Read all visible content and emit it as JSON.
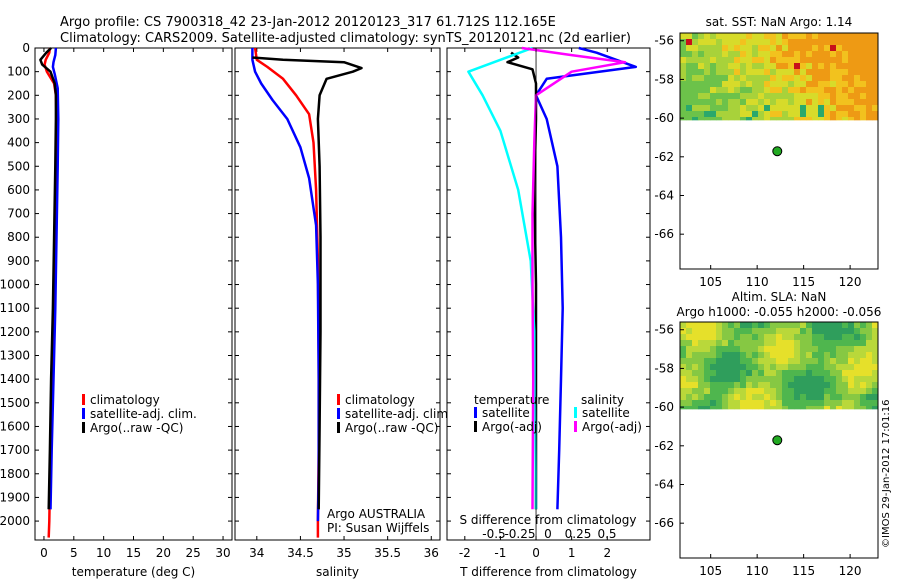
{
  "header": {
    "line1": "Argo profile: CS 7900318_42 23-Jan-2012 20120123_317 61.712S 112.165E",
    "line2": "Climatology: CARS2009. Satellite-adjusted climatology: synTS_20120121.nc (2d earlier)"
  },
  "watermark": "©IMOS 29-Jan-2012 17:01:16",
  "colors": {
    "red": "#ff0000",
    "blue": "#0000ff",
    "black": "#000000",
    "cyan": "#00ffff",
    "magenta": "#ff00ff",
    "dot": "#22aa22"
  },
  "chart_data": [
    {
      "id": "temperature",
      "type": "line",
      "xlabel": "temperature (deg C)",
      "ylabel": "",
      "xlim": [
        -1.5,
        31.5
      ],
      "ylim": [
        2080,
        0
      ],
      "xticks": [
        0,
        5,
        10,
        15,
        20,
        25,
        30
      ],
      "yticks": [
        0,
        100,
        200,
        300,
        400,
        500,
        600,
        700,
        800,
        900,
        1000,
        1100,
        1200,
        1300,
        1400,
        1500,
        1600,
        1700,
        1800,
        1900,
        2000
      ],
      "legend": [
        "climatology",
        "satellite-adj. clim.",
        "Argo(..raw -QC)"
      ],
      "series": [
        {
          "name": "climatology",
          "color": "red",
          "points": [
            [
              1.0,
              0
            ],
            [
              0.9,
              20
            ],
            [
              0.3,
              50
            ],
            [
              0.1,
              70
            ],
            [
              0.5,
              100
            ],
            [
              1.7,
              150
            ],
            [
              2.0,
              200
            ],
            [
              2.1,
              300
            ],
            [
              2.0,
              500
            ],
            [
              1.8,
              800
            ],
            [
              1.6,
              1100
            ],
            [
              1.4,
              1400
            ],
            [
              1.1,
              1700
            ],
            [
              0.9,
              2000
            ],
            [
              0.8,
              2070
            ]
          ]
        },
        {
          "name": "satellite-adj. clim.",
          "color": "blue",
          "points": [
            [
              2.0,
              0
            ],
            [
              1.9,
              30
            ],
            [
              1.6,
              60
            ],
            [
              1.5,
              80
            ],
            [
              1.8,
              110
            ],
            [
              2.3,
              170
            ],
            [
              2.4,
              300
            ],
            [
              2.3,
              500
            ],
            [
              2.1,
              800
            ],
            [
              1.9,
              1100
            ],
            [
              1.6,
              1400
            ],
            [
              1.3,
              1700
            ],
            [
              1.1,
              1950
            ]
          ]
        },
        {
          "name": "Argo(..raw -QC)",
          "color": "black",
          "points": [
            [
              1.2,
              0
            ],
            [
              0.4,
              20
            ],
            [
              -0.6,
              50
            ],
            [
              -0.3,
              70
            ],
            [
              1.1,
              100
            ],
            [
              1.8,
              150
            ],
            [
              2.0,
              200
            ],
            [
              2.0,
              300
            ],
            [
              1.9,
              500
            ],
            [
              1.7,
              800
            ],
            [
              1.5,
              1100
            ],
            [
              1.2,
              1400
            ],
            [
              1.0,
              1700
            ],
            [
              0.8,
              1950
            ]
          ]
        }
      ]
    },
    {
      "id": "salinity",
      "type": "line",
      "xlabel": "salinity",
      "ylabel": "",
      "xlim": [
        33.75,
        36.1
      ],
      "ylim": [
        2080,
        0
      ],
      "xticks": [
        34,
        34.5,
        35,
        35.5,
        36
      ],
      "legend": [
        "climatology",
        "satellite-adj. clim.",
        "Argo(..raw -QC)"
      ],
      "series": [
        {
          "name": "climatology",
          "color": "red",
          "points": [
            [
              33.98,
              0
            ],
            [
              34.0,
              50
            ],
            [
              34.12,
              80
            ],
            [
              34.3,
              130
            ],
            [
              34.45,
              200
            ],
            [
              34.6,
              280
            ],
            [
              34.65,
              400
            ],
            [
              34.68,
              600
            ],
            [
              34.7,
              900
            ],
            [
              34.71,
              1300
            ],
            [
              34.71,
              1700
            ],
            [
              34.7,
              2000
            ],
            [
              34.7,
              2070
            ]
          ]
        },
        {
          "name": "satellite-adj. clim.",
          "color": "blue",
          "points": [
            [
              33.95,
              0
            ],
            [
              33.95,
              50
            ],
            [
              33.98,
              100
            ],
            [
              34.05,
              150
            ],
            [
              34.18,
              220
            ],
            [
              34.35,
              300
            ],
            [
              34.5,
              420
            ],
            [
              34.6,
              550
            ],
            [
              34.68,
              750
            ],
            [
              34.7,
              1000
            ],
            [
              34.71,
              1400
            ],
            [
              34.71,
              1800
            ],
            [
              34.7,
              2000
            ]
          ]
        },
        {
          "name": "Argo(..raw -QC)",
          "color": "black",
          "points": [
            [
              33.95,
              40
            ],
            [
              34.3,
              50
            ],
            [
              35.0,
              60
            ],
            [
              35.2,
              85
            ],
            [
              35.1,
              100
            ],
            [
              34.8,
              130
            ],
            [
              34.72,
              200
            ],
            [
              34.7,
              300
            ],
            [
              34.72,
              500
            ],
            [
              34.73,
              800
            ],
            [
              34.73,
              1200
            ],
            [
              34.72,
              1600
            ],
            [
              34.71,
              1950
            ]
          ]
        }
      ],
      "annotations": [
        "Argo AUSTRALIA",
        "PI: Susan Wijffels"
      ]
    },
    {
      "id": "difference",
      "type": "line",
      "xlabel": "T difference from climatology",
      "top_label": "S difference from climatology",
      "xlim": [
        -2.5,
        3.2
      ],
      "ylim": [
        2080,
        0
      ],
      "xticks": [
        -2,
        -1,
        0,
        1,
        2
      ],
      "sticks": [
        "-0.5",
        "-0.25",
        "0",
        "0.25",
        "0.5"
      ],
      "legend_titles": [
        "temperature",
        "salinity"
      ],
      "legend": [
        "satellite",
        "Argo(-adj)",
        "satellite",
        "Argo(-adj)"
      ],
      "series": [
        {
          "name": "T satellite",
          "color": "blue",
          "points": [
            [
              1.2,
              0
            ],
            [
              1.7,
              20
            ],
            [
              2.8,
              80
            ],
            [
              0.3,
              130
            ],
            [
              0.0,
              200
            ],
            [
              0.3,
              300
            ],
            [
              0.6,
              500
            ],
            [
              0.7,
              800
            ],
            [
              0.75,
              1100
            ],
            [
              0.7,
              1400
            ],
            [
              0.65,
              1700
            ],
            [
              0.6,
              1950
            ]
          ]
        },
        {
          "name": "T Argo(-adj)",
          "color": "black",
          "points": [
            [
              -0.7,
              20
            ],
            [
              -0.5,
              40
            ],
            [
              -0.8,
              60
            ],
            [
              -0.1,
              90
            ],
            [
              0.0,
              150
            ],
            [
              0.0,
              300
            ],
            [
              -0.05,
              600
            ],
            [
              0.0,
              1000
            ],
            [
              0.0,
              1500
            ],
            [
              0.0,
              1950
            ]
          ]
        },
        {
          "name": "S satellite",
          "color": "cyan",
          "points": [
            [
              -0.1,
              0
            ],
            [
              -1.0,
              50
            ],
            [
              -1.9,
              100
            ],
            [
              -1.5,
              200
            ],
            [
              -1.0,
              350
            ],
            [
              -0.5,
              600
            ],
            [
              -0.15,
              900
            ],
            [
              -0.05,
              1200
            ],
            [
              -0.02,
              1500
            ],
            [
              0.0,
              1950
            ]
          ]
        },
        {
          "name": "S Argo(-adj)",
          "color": "magenta",
          "points": [
            [
              -0.4,
              0
            ],
            [
              1.0,
              30
            ],
            [
              2.5,
              60
            ],
            [
              1.0,
              100
            ],
            [
              0.0,
              200
            ],
            [
              -0.05,
              400
            ],
            [
              -0.1,
              700
            ],
            [
              -0.1,
              1000
            ],
            [
              -0.08,
              1400
            ],
            [
              -0.1,
              1950
            ]
          ]
        }
      ]
    },
    {
      "id": "sst-map",
      "type": "heatmap",
      "title": "sat. SST: NaN Argo: 1.14",
      "xlim": [
        101.7,
        123
      ],
      "ylim": [
        -67.8,
        -55.6
      ],
      "xticks": [
        105,
        110,
        115,
        120
      ],
      "yticks": [
        -56,
        -58,
        -60,
        -62,
        -64,
        -66
      ],
      "data_top": -55.6,
      "data_bottom": -60.1,
      "profile": [
        112.165,
        -61.712
      ],
      "palette": "sst"
    },
    {
      "id": "sla-map",
      "type": "heatmap",
      "title": "Altim. SLA: NaN",
      "subtitle": "Argo h1000: -0.055 h2000: -0.056",
      "xlim": [
        101.7,
        123
      ],
      "ylim": [
        -67.8,
        -55.6
      ],
      "xticks": [
        105,
        110,
        115,
        120
      ],
      "yticks": [
        -56,
        -58,
        -60,
        -62,
        -64,
        -66
      ],
      "data_top": -55.6,
      "data_bottom": -60.1,
      "profile": [
        112.165,
        -61.712
      ],
      "palette": "sla"
    }
  ]
}
